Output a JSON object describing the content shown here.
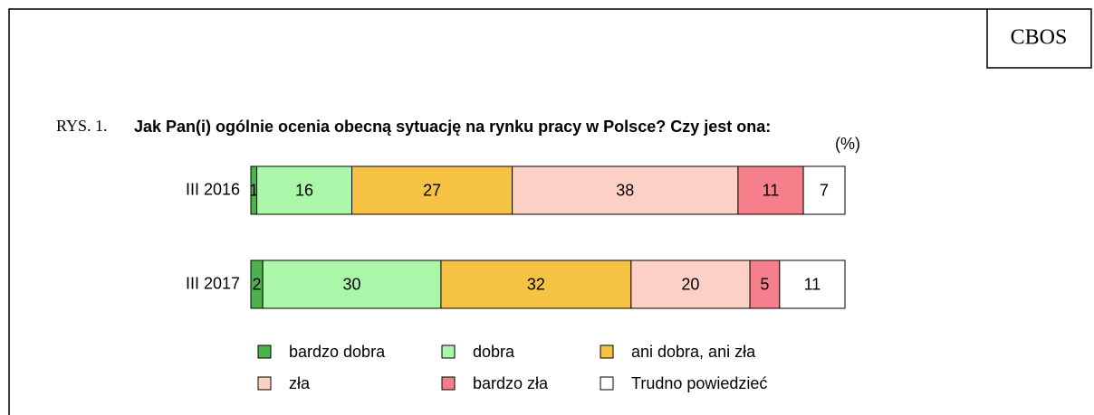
{
  "chart_data": {
    "type": "stacked-bar-horizontal",
    "badge": "CBOS",
    "figure_label": "RYS. 1.",
    "title": "Jak Pan(i) ogólnie ocenia obecną sytuację na rynku pracy w Polsce? Czy jest ona:",
    "unit": "(%)",
    "categories": [
      "III 2016",
      "III 2017"
    ],
    "xlim": [
      0,
      100
    ],
    "series": [
      {
        "name": "bardzo dobra",
        "color": "#4cb34c",
        "values": [
          1,
          2
        ]
      },
      {
        "name": "dobra",
        "color": "#aaf7aa",
        "values": [
          16,
          30
        ]
      },
      {
        "name": "ani dobra, ani zła",
        "color": "#f6c244",
        "values": [
          27,
          32
        ]
      },
      {
        "name": "zła",
        "color": "#fcd0c5",
        "values": [
          38,
          20
        ]
      },
      {
        "name": "bardzo zła",
        "color": "#f5808c",
        "values": [
          11,
          5
        ]
      },
      {
        "name": "Trudno powiedzieć",
        "color": "#ffffff",
        "values": [
          7,
          11
        ]
      }
    ]
  }
}
